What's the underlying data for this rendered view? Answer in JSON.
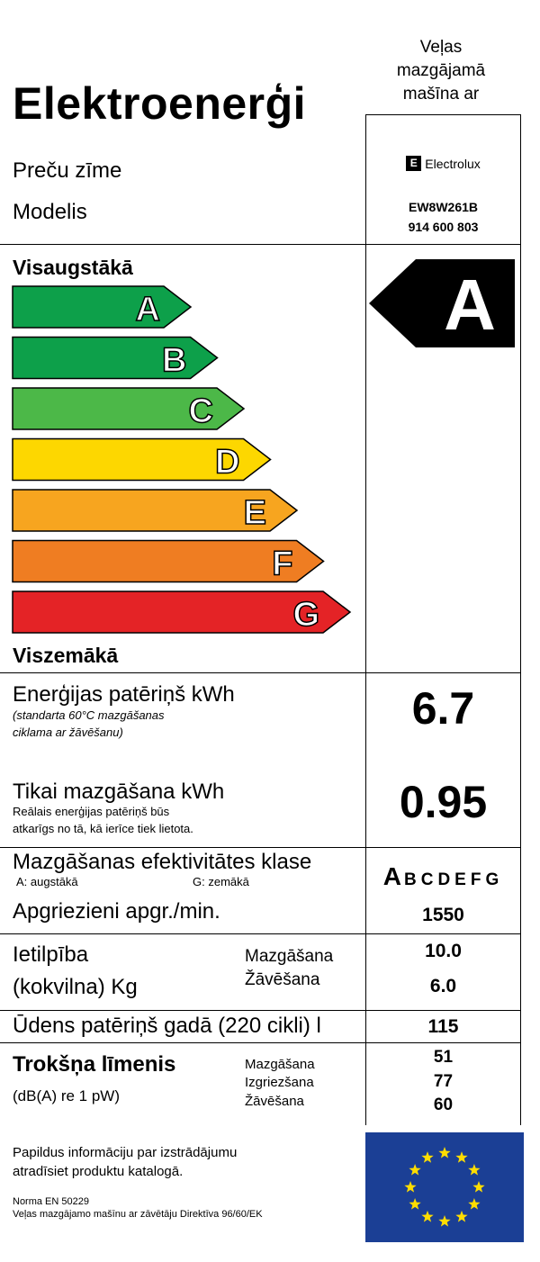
{
  "title": "Elektroenerģi",
  "appliance_type": "Veļas mazgājamā mašīna ar",
  "brand_label": "Preču zīme",
  "model_label": "Modelis",
  "brand": {
    "logo_text": "Electrolux",
    "logo_icon": "electrolux-logo-icon"
  },
  "model_name": "EW8W261B",
  "model_number": "914 600 803",
  "scale": {
    "top_label": "Visaugstākā",
    "bottom_label": "Viszemākā",
    "classes": [
      {
        "letter": "A",
        "color": "#0da04a"
      },
      {
        "letter": "B",
        "color": "#0da04a"
      },
      {
        "letter": "C",
        "color": "#4cb848"
      },
      {
        "letter": "D",
        "color": "#fdd700"
      },
      {
        "letter": "E",
        "color": "#f7a51f"
      },
      {
        "letter": "F",
        "color": "#ef7d22"
      },
      {
        "letter": "G",
        "color": "#e42326"
      }
    ],
    "rating": "A"
  },
  "energy": {
    "label": "Enerģijas patēriņš kWh",
    "note_line1": "(standarta 60°C mazgāšanas",
    "note_line2": "ciklama ar žāvēšanu)",
    "value": "6.7"
  },
  "wash_only": {
    "label": "Tikai mazgāšana kWh",
    "note_line1": "Reālais enerģijas patēriņš būs",
    "note_line2": "atkarīgs no tā, kā ierīce tiek lietota.",
    "value": "0.95"
  },
  "wash_class": {
    "label": "Mazgāšanas efektivitātes klase",
    "legend_a": "A:  augstākā",
    "legend_g": "G:  zemākā",
    "selected": "A",
    "rest": "BCDEFG"
  },
  "spin": {
    "label": "Apgriezieni apgr./min.",
    "value": "1550"
  },
  "capacity": {
    "label_line1": "Ietilpība",
    "label_line2": "(kokvilna) Kg",
    "wash_label": "Mazgāšana",
    "dry_label": "Žāvēšana",
    "wash_value": "10.0",
    "dry_value": "6.0"
  },
  "water": {
    "label": "Ūdens patēriņš gadā (220 cikli) l",
    "value": "115"
  },
  "noise": {
    "label": "Trokšņa līmenis",
    "unit": "(dB(A) re 1 pW)",
    "wash_label": "Mazgāšana",
    "spin_label": "Izgriezšana",
    "dry_label": "Žāvēšana",
    "wash_value": "51",
    "spin_value": "77",
    "dry_value": "60"
  },
  "footer": {
    "info_line1": "Papildus informāciju par izstrādājumu",
    "info_line2": "atradīsiet produktu katalogā.",
    "norm_line1": "Norma EN 50229",
    "norm_line2": "Veļas mazgājamo mašīnu ar zāvētāju Direktīva 96/60/EK"
  },
  "eu_flag": {
    "background": "#1b3f95",
    "star_color": "#ffdd00"
  }
}
